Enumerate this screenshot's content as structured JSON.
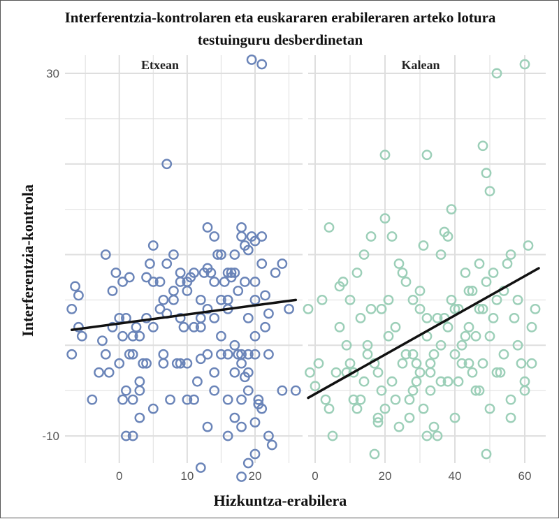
{
  "chart_data": {
    "type": "scatter",
    "title": "Interferentzia-kontrolaren eta euskararen erabileraren arteko lotura testuinguru desberdinetan",
    "title_lines": [
      "Interferentzia-kontrolaren eta euskararen erabileraren arteko lotura",
      "testuinguru desberdinetan"
    ],
    "xlabel": "Hizkuntza-erabilera",
    "ylabel": "Interferentzia-kontrola",
    "ylim": [
      -13,
      32
    ],
    "y_ticks": [
      30,
      -10
    ],
    "y_tick_labels": [
      "30",
      "-10"
    ],
    "grid": true,
    "colors": {
      "Etxean": "#6a84b8",
      "Kalean": "#9ccfb8",
      "line": "#111111",
      "grid": "#dedede"
    },
    "panels": [
      {
        "name": "Etxean",
        "xlim": [
          -8,
          27
        ],
        "x_ticks": [
          0,
          10,
          20
        ],
        "x_tick_labels": [
          "0",
          "10",
          "20"
        ],
        "trend": {
          "x0": -7,
          "y0": 1.7,
          "x1": 26,
          "y1": 5.0
        },
        "points": [
          [
            -7,
            4
          ],
          [
            -6.5,
            6.5
          ],
          [
            -6,
            2
          ],
          [
            -5.5,
            1
          ],
          [
            -7,
            -1
          ],
          [
            -6,
            5.5
          ],
          [
            -4,
            -6
          ],
          [
            -3,
            -3
          ],
          [
            -2.5,
            0.5
          ],
          [
            -2,
            -1
          ],
          [
            -1.5,
            -3
          ],
          [
            -1,
            2
          ],
          [
            -1,
            6
          ],
          [
            -2,
            10
          ],
          [
            -0.5,
            8
          ],
          [
            0,
            -2
          ],
          [
            0,
            3
          ],
          [
            0.5,
            -6
          ],
          [
            0.5,
            7
          ],
          [
            0.5,
            1
          ],
          [
            1,
            -10
          ],
          [
            1,
            -5
          ],
          [
            1,
            3
          ],
          [
            1.5,
            -1
          ],
          [
            1.5,
            7.5
          ],
          [
            2,
            -1
          ],
          [
            2,
            -6
          ],
          [
            2,
            -10
          ],
          [
            2.5,
            2
          ],
          [
            3,
            -8
          ],
          [
            3,
            -5
          ],
          [
            3,
            1
          ],
          [
            3.5,
            -2
          ],
          [
            4,
            -2
          ],
          [
            4,
            3
          ],
          [
            4,
            7.5
          ],
          [
            4.5,
            9
          ],
          [
            5,
            11
          ],
          [
            5,
            2
          ],
          [
            5,
            7
          ],
          [
            5,
            -7
          ],
          [
            6,
            7
          ],
          [
            6,
            4
          ],
          [
            6.5,
            5
          ],
          [
            6.5,
            -1
          ],
          [
            6.5,
            -2
          ],
          [
            7,
            9
          ],
          [
            7.5,
            -6
          ],
          [
            7,
            20
          ],
          [
            8,
            5
          ],
          [
            8,
            10
          ],
          [
            8.5,
            -2
          ],
          [
            9,
            -2
          ],
          [
            9,
            3
          ],
          [
            9.5,
            2
          ],
          [
            10,
            -6
          ],
          [
            10,
            -2
          ],
          [
            10,
            7
          ],
          [
            11,
            -6
          ],
          [
            11,
            8
          ],
          [
            11.5,
            -4
          ],
          [
            12,
            -1.5
          ],
          [
            12,
            2
          ],
          [
            12.5,
            8
          ],
          [
            13,
            4
          ],
          [
            13,
            -9
          ],
          [
            13,
            13
          ],
          [
            13.5,
            8
          ],
          [
            14,
            -5
          ],
          [
            14,
            -3
          ],
          [
            14,
            3
          ],
          [
            14.5,
            10
          ],
          [
            15,
            10
          ],
          [
            15,
            -1
          ],
          [
            15,
            1
          ],
          [
            15.5,
            7
          ],
          [
            16,
            -1
          ],
          [
            16,
            4
          ],
          [
            16,
            -10
          ],
          [
            16,
            -6
          ],
          [
            16.5,
            8
          ],
          [
            17,
            -8
          ],
          [
            17,
            -3
          ],
          [
            17.5,
            -1
          ],
          [
            17.5,
            6
          ],
          [
            18,
            -2
          ],
          [
            18,
            -6
          ],
          [
            18,
            -1
          ],
          [
            18,
            13
          ],
          [
            18.5,
            11
          ],
          [
            18.5,
            7
          ],
          [
            19,
            3
          ],
          [
            19,
            -3
          ],
          [
            19,
            -1
          ],
          [
            19.5,
            12
          ],
          [
            20,
            1
          ],
          [
            20,
            5
          ],
          [
            20,
            -1
          ],
          [
            20,
            7
          ],
          [
            20.5,
            -6
          ],
          [
            21,
            -7
          ],
          [
            21,
            12
          ],
          [
            21.5,
            2
          ],
          [
            22,
            -1
          ],
          [
            22,
            -10
          ],
          [
            22.5,
            -11
          ],
          [
            23,
            8
          ],
          [
            24,
            -5
          ],
          [
            24,
            9
          ],
          [
            25,
            4
          ],
          [
            26,
            -5
          ],
          [
            12,
            -13.5
          ],
          [
            19,
            -13
          ],
          [
            18,
            -14.5
          ],
          [
            20,
            -12
          ],
          [
            19.5,
            31.5
          ],
          [
            21,
            31
          ],
          [
            16,
            8
          ],
          [
            21,
            9
          ],
          [
            17,
            8
          ],
          [
            19,
            10.5
          ],
          [
            20,
            11.5
          ],
          [
            18,
            12
          ],
          [
            16,
            5
          ],
          [
            14,
            7
          ],
          [
            10,
            6
          ],
          [
            9,
            8
          ],
          [
            8,
            6
          ],
          [
            12,
            3
          ],
          [
            15,
            5
          ],
          [
            14,
            12
          ],
          [
            17,
            10
          ],
          [
            13,
            -1
          ],
          [
            11,
            2
          ],
          [
            17,
            0
          ],
          [
            18.5,
            -3.5
          ],
          [
            19,
            -5
          ],
          [
            20,
            -8.5
          ],
          [
            20.5,
            -6.5
          ],
          [
            18,
            -9
          ],
          [
            9,
            7
          ],
          [
            7,
            3.5
          ],
          [
            22,
            3.5
          ],
          [
            21.5,
            5.5
          ],
          [
            16.5,
            7.5
          ],
          [
            10.5,
            7.5
          ],
          [
            12,
            5
          ],
          [
            13,
            8.5
          ],
          [
            2,
            1
          ],
          [
            3,
            -4
          ]
        ]
      },
      {
        "name": "Kalean",
        "xlim": [
          -2,
          66
        ],
        "x_ticks": [
          0,
          20,
          40,
          60
        ],
        "x_tick_labels": [
          "0",
          "20",
          "40",
          "60"
        ],
        "trend": {
          "x0": -2,
          "y0": -5.8,
          "x1": 64,
          "y1": 8.5
        },
        "points": [
          [
            -2,
            4
          ],
          [
            -1.5,
            -3
          ],
          [
            0,
            -4.5
          ],
          [
            1,
            -2
          ],
          [
            2,
            5
          ],
          [
            3,
            -6
          ],
          [
            4,
            -7
          ],
          [
            5,
            -10
          ],
          [
            6,
            -3
          ],
          [
            7,
            6.5
          ],
          [
            8,
            7
          ],
          [
            9,
            -3
          ],
          [
            10,
            -2
          ],
          [
            11,
            -6
          ],
          [
            12,
            -7
          ],
          [
            13,
            -6
          ],
          [
            14,
            -4
          ],
          [
            15,
            0
          ],
          [
            16,
            4
          ],
          [
            17,
            -2
          ],
          [
            18,
            -3
          ],
          [
            19,
            -5
          ],
          [
            20,
            -7
          ],
          [
            21,
            5
          ],
          [
            22,
            -4
          ],
          [
            23,
            2
          ],
          [
            24,
            -9
          ],
          [
            25,
            8
          ],
          [
            26,
            -1
          ],
          [
            27,
            -6
          ],
          [
            28,
            5
          ],
          [
            29,
            -2
          ],
          [
            30,
            -3
          ],
          [
            31,
            11
          ],
          [
            32,
            3
          ],
          [
            33,
            -5
          ],
          [
            34,
            -9
          ],
          [
            35,
            -10
          ],
          [
            36,
            0
          ],
          [
            37,
            3
          ],
          [
            38,
            -4
          ],
          [
            39,
            5
          ],
          [
            40,
            -1
          ],
          [
            41,
            4
          ],
          [
            42,
            -2
          ],
          [
            43,
            8
          ],
          [
            44,
            6
          ],
          [
            45,
            -3
          ],
          [
            46,
            1
          ],
          [
            47,
            4
          ],
          [
            48,
            -2
          ],
          [
            49,
            7
          ],
          [
            50,
            -7
          ],
          [
            51,
            3
          ],
          [
            52,
            5
          ],
          [
            53,
            -3
          ],
          [
            54,
            -1
          ],
          [
            55,
            9
          ],
          [
            56,
            -6
          ],
          [
            57,
            3
          ],
          [
            58,
            5
          ],
          [
            59,
            -2
          ],
          [
            60,
            -4
          ],
          [
            61,
            11
          ],
          [
            62,
            2
          ],
          [
            63,
            4
          ],
          [
            12,
            8
          ],
          [
            14,
            10
          ],
          [
            16,
            12
          ],
          [
            18,
            -8
          ],
          [
            20,
            14
          ],
          [
            22,
            12
          ],
          [
            24,
            9
          ],
          [
            26,
            7
          ],
          [
            28,
            -5
          ],
          [
            30,
            6
          ],
          [
            32,
            1
          ],
          [
            34,
            -1
          ],
          [
            36,
            10
          ],
          [
            38,
            12
          ],
          [
            40,
            -8
          ],
          [
            42,
            0
          ],
          [
            44,
            2
          ],
          [
            46,
            -5
          ],
          [
            48,
            4
          ],
          [
            50,
            1
          ],
          [
            52,
            -3
          ],
          [
            54,
            6
          ],
          [
            56,
            -8
          ],
          [
            58,
            0
          ],
          [
            60,
            -5
          ],
          [
            62,
            -2
          ],
          [
            17,
            -12
          ],
          [
            32,
            -10
          ],
          [
            49,
            -12
          ],
          [
            20,
            21
          ],
          [
            32,
            21
          ],
          [
            48,
            22
          ],
          [
            50,
            17
          ],
          [
            52,
            30
          ],
          [
            60,
            31
          ],
          [
            4,
            13
          ],
          [
            37,
            12.5
          ],
          [
            39,
            15
          ],
          [
            30,
            4
          ],
          [
            28,
            -1
          ],
          [
            33,
            -3
          ],
          [
            35,
            3
          ],
          [
            45,
            6
          ],
          [
            47,
            9
          ],
          [
            51,
            8
          ],
          [
            56,
            10
          ],
          [
            38,
            2
          ],
          [
            36,
            -4
          ],
          [
            40,
            4
          ],
          [
            44,
            -2
          ],
          [
            41,
            -4
          ],
          [
            43,
            1
          ],
          [
            25,
            -2
          ],
          [
            21,
            1
          ],
          [
            19,
            4
          ],
          [
            15,
            -1
          ],
          [
            13,
            3
          ],
          [
            11,
            -3
          ],
          [
            9,
            0
          ],
          [
            7,
            2
          ],
          [
            10,
            5
          ],
          [
            18,
            -8.5
          ],
          [
            23,
            -6
          ],
          [
            27,
            -8
          ],
          [
            29,
            -4
          ],
          [
            31,
            -7
          ],
          [
            33,
            -2
          ],
          [
            47,
            -5
          ],
          [
            49,
            19
          ]
        ]
      }
    ]
  }
}
